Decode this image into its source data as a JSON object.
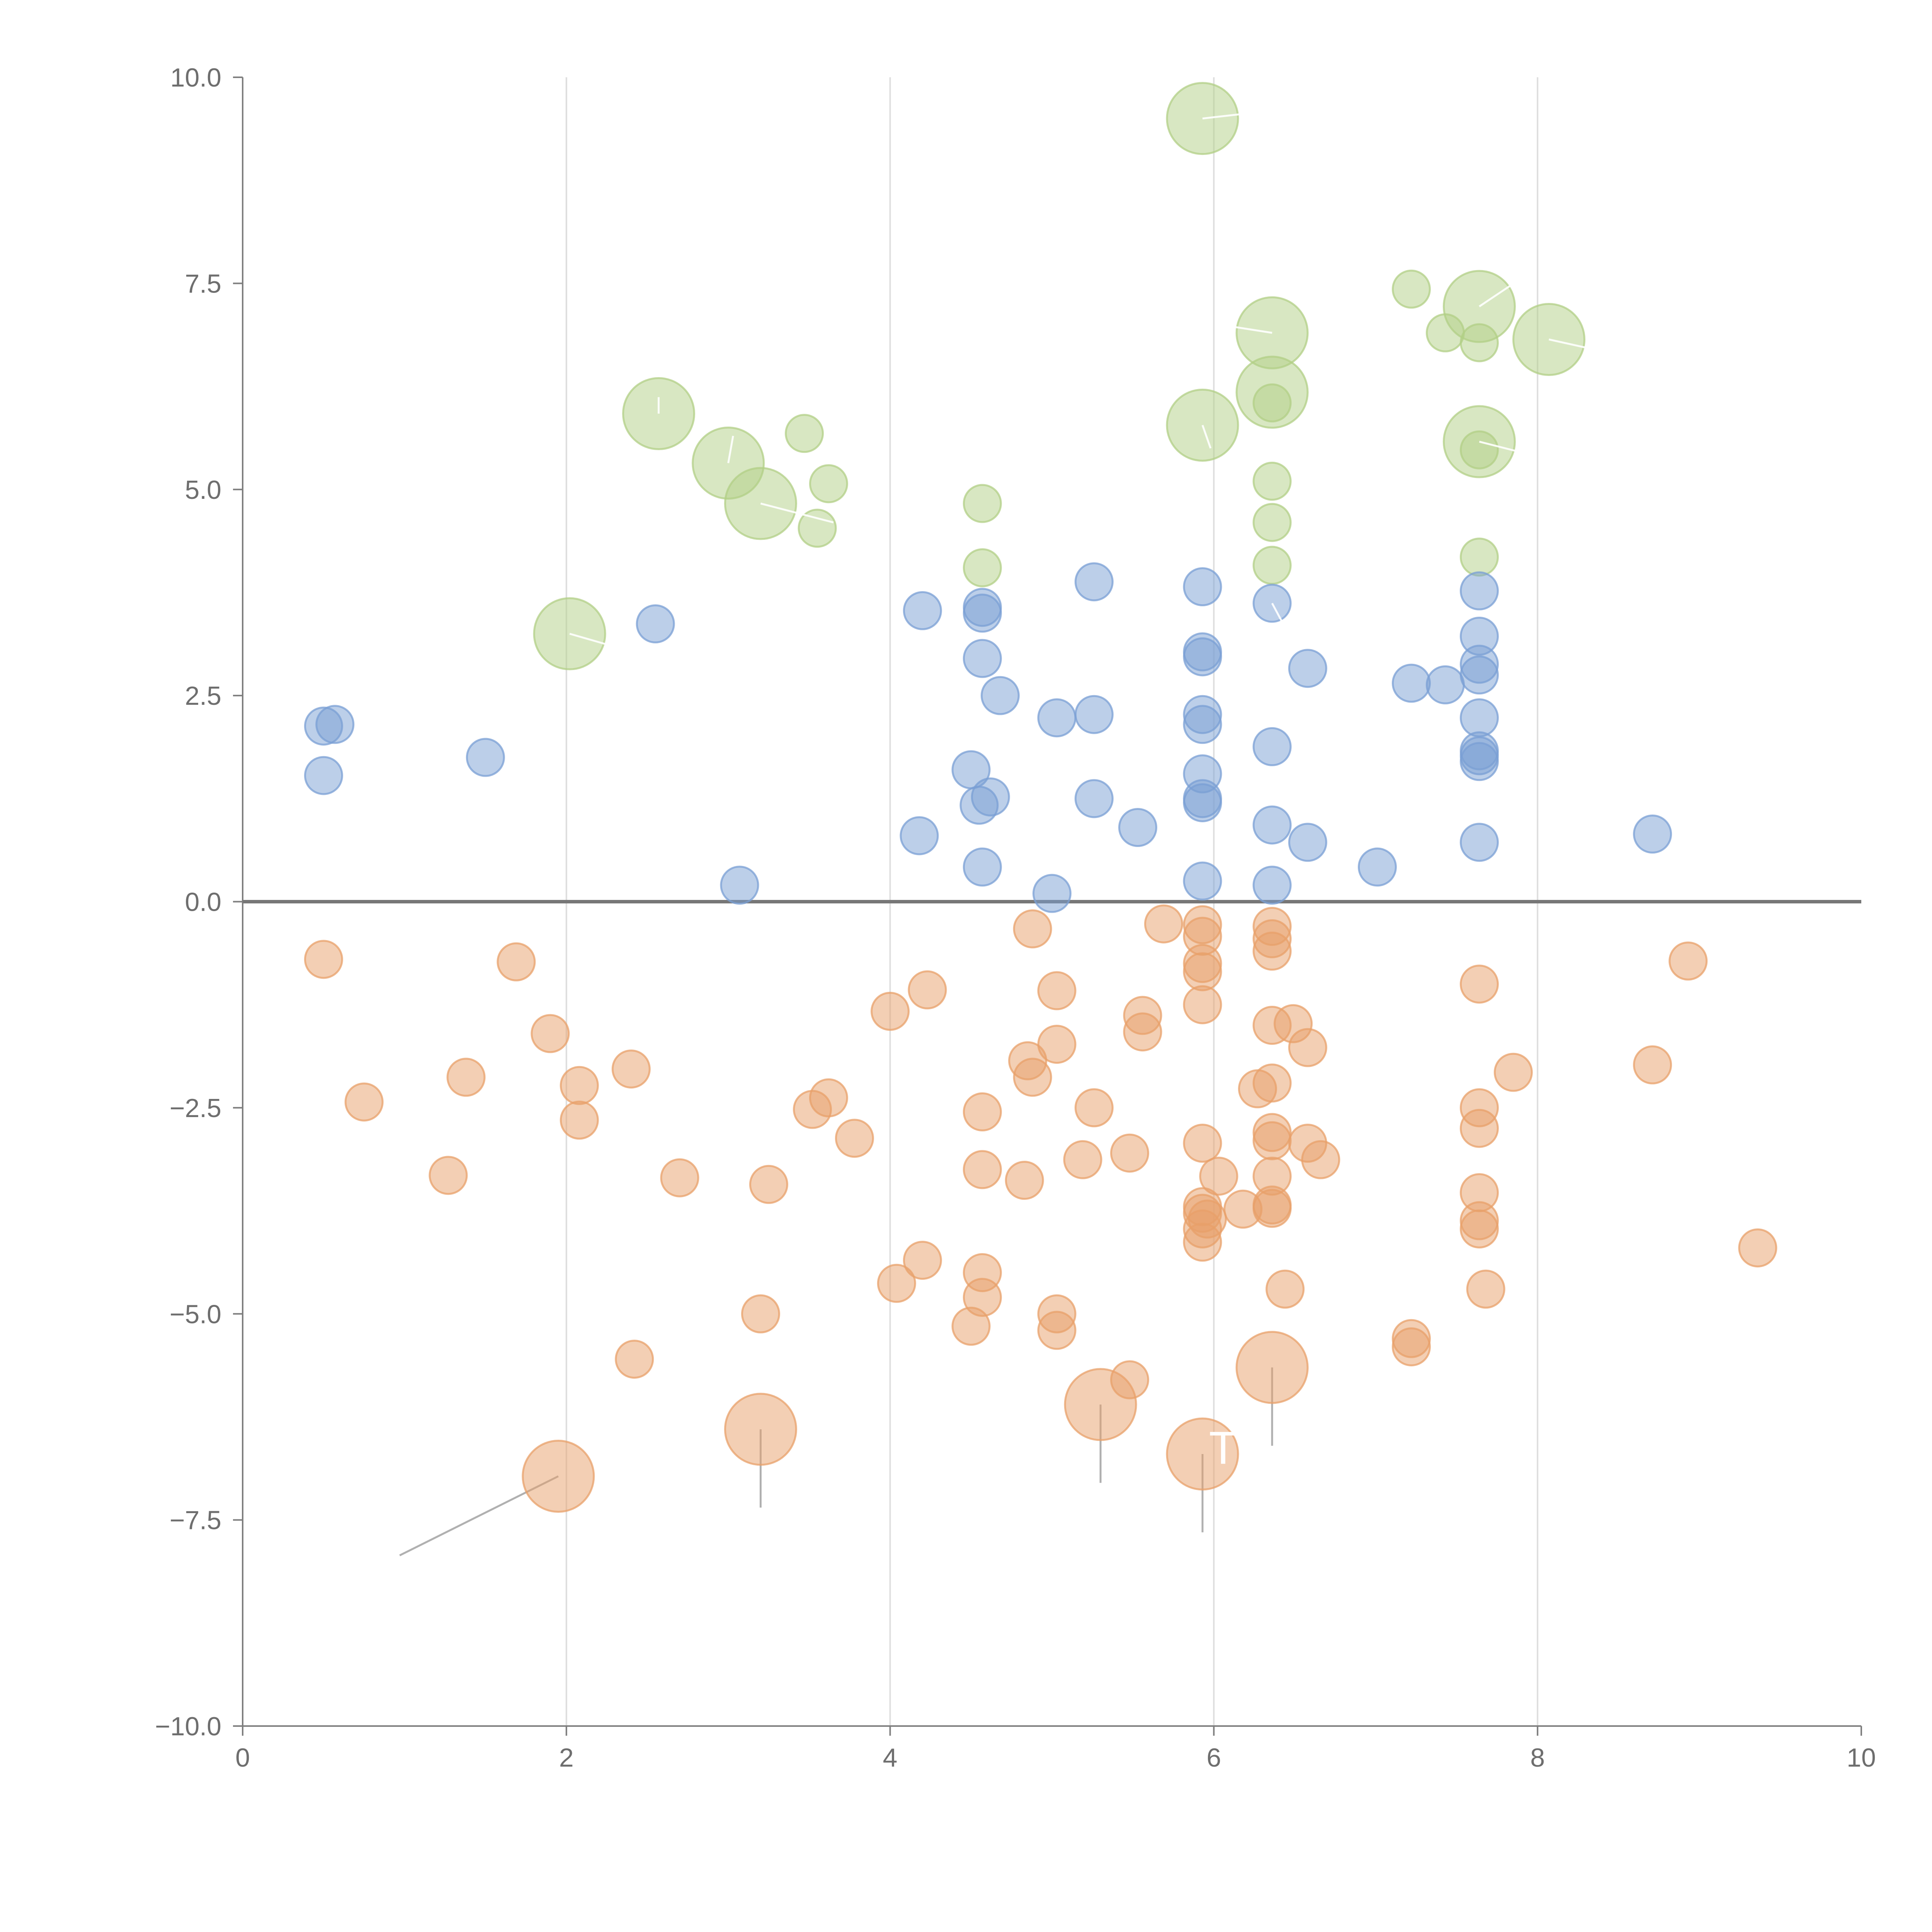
{
  "colors": {
    "positive": "#7a9fd4",
    "negative": "#e8a06a",
    "high": "#b1cf85",
    "axis": "#7f7f7f",
    "grid": "#dedede",
    "zero_line": "#777777",
    "connector": "#b0b0b0",
    "annotation": "#ffffff"
  },
  "chart_data": {
    "type": "scatter",
    "title": "",
    "xlabel": "",
    "ylabel": "",
    "xlim": [
      0,
      10
    ],
    "ylim": [
      -10,
      10
    ],
    "x_ticks": [
      0,
      2,
      4,
      6,
      8,
      10
    ],
    "y_ticks": [
      10,
      7.5,
      5,
      2.5,
      0,
      -2.5,
      -5,
      -7.5,
      -10
    ],
    "x_tick_labels": [
      "0",
      "2",
      "4",
      "6",
      "8",
      "10"
    ],
    "y_tick_labels": [
      "10.0",
      "7.5",
      "5.0",
      "2.5",
      "0.0",
      "−2.5",
      "−5.0",
      "−7.5",
      "−10.0"
    ],
    "grid": "vertical",
    "zero_line": true,
    "bubble_sizes": {
      "small": 1,
      "large": 3
    },
    "series": [
      {
        "name": "high",
        "color_key": "high",
        "points": [
          [
            5.93,
            9.5,
            3
          ],
          [
            7.22,
            7.43,
            1
          ],
          [
            7.64,
            7.22,
            3
          ],
          [
            7.43,
            6.9,
            1
          ],
          [
            6.36,
            6.9,
            3
          ],
          [
            8.07,
            6.82,
            3
          ],
          [
            7.64,
            6.78,
            1
          ],
          [
            2.57,
            5.92,
            3
          ],
          [
            6.36,
            6.18,
            3
          ],
          [
            6.36,
            6.05,
            1
          ],
          [
            5.93,
            5.78,
            3
          ],
          [
            3.47,
            5.68,
            1
          ],
          [
            7.64,
            5.58,
            3
          ],
          [
            7.64,
            5.48,
            1
          ],
          [
            3.0,
            5.32,
            3
          ],
          [
            3.62,
            5.07,
            1
          ],
          [
            6.36,
            5.1,
            1
          ],
          [
            3.2,
            4.83,
            3
          ],
          [
            4.57,
            4.83,
            1
          ],
          [
            3.55,
            4.53,
            1
          ],
          [
            6.36,
            4.6,
            1
          ],
          [
            7.64,
            4.18,
            1
          ],
          [
            6.36,
            4.08,
            1
          ],
          [
            4.57,
            4.05,
            1
          ],
          [
            2.02,
            3.25,
            3
          ]
        ]
      },
      {
        "name": "positive",
        "color_key": "positive",
        "points": [
          [
            5.26,
            3.88,
            1
          ],
          [
            5.93,
            3.82,
            1
          ],
          [
            7.64,
            3.77,
            1
          ],
          [
            6.36,
            3.62,
            1
          ],
          [
            4.2,
            3.53,
            1
          ],
          [
            4.57,
            3.57,
            1
          ],
          [
            4.57,
            3.5,
            1
          ],
          [
            2.55,
            3.37,
            1
          ],
          [
            7.64,
            3.22,
            1
          ],
          [
            5.93,
            3.03,
            1
          ],
          [
            5.93,
            2.97,
            1
          ],
          [
            4.57,
            2.95,
            1
          ],
          [
            7.64,
            2.88,
            1
          ],
          [
            6.58,
            2.83,
            1
          ],
          [
            7.64,
            2.75,
            1
          ],
          [
            7.22,
            2.65,
            1
          ],
          [
            7.43,
            2.63,
            1
          ],
          [
            4.68,
            2.5,
            1
          ],
          [
            5.93,
            2.27,
            1
          ],
          [
            5.26,
            2.27,
            1
          ],
          [
            5.03,
            2.23,
            1
          ],
          [
            7.64,
            2.23,
            1
          ],
          [
            0.5,
            2.13,
            1
          ],
          [
            0.57,
            2.15,
            1
          ],
          [
            5.93,
            2.15,
            1
          ],
          [
            6.36,
            1.88,
            1
          ],
          [
            7.64,
            1.83,
            1
          ],
          [
            7.64,
            1.77,
            1
          ],
          [
            1.5,
            1.75,
            1
          ],
          [
            7.64,
            1.7,
            1
          ],
          [
            4.5,
            1.6,
            1
          ],
          [
            5.93,
            1.55,
            1
          ],
          [
            0.5,
            1.53,
            1
          ],
          [
            4.62,
            1.27,
            1
          ],
          [
            5.26,
            1.25,
            1
          ],
          [
            5.93,
            1.25,
            1
          ],
          [
            5.93,
            1.2,
            1
          ],
          [
            4.55,
            1.17,
            1
          ],
          [
            6.36,
            0.93,
            1
          ],
          [
            5.53,
            0.9,
            1
          ],
          [
            4.18,
            0.8,
            1
          ],
          [
            8.71,
            0.82,
            1
          ],
          [
            6.58,
            0.72,
            1
          ],
          [
            7.64,
            0.72,
            1
          ],
          [
            4.57,
            0.42,
            1
          ],
          [
            7.01,
            0.42,
            1
          ],
          [
            5.93,
            0.25,
            1
          ],
          [
            6.36,
            0.2,
            1
          ],
          [
            3.07,
            0.2,
            1
          ],
          [
            5.0,
            0.1,
            1
          ]
        ]
      },
      {
        "name": "negative",
        "color_key": "negative",
        "points": [
          [
            5.93,
            -0.28,
            1
          ],
          [
            6.36,
            -0.3,
            1
          ],
          [
            5.69,
            -0.27,
            1
          ],
          [
            4.88,
            -0.33,
            1
          ],
          [
            5.93,
            -0.42,
            1
          ],
          [
            6.36,
            -0.45,
            1
          ],
          [
            6.36,
            -0.6,
            1
          ],
          [
            0.5,
            -0.7,
            1
          ],
          [
            1.69,
            -0.73,
            1
          ],
          [
            5.93,
            -0.75,
            1
          ],
          [
            8.93,
            -0.72,
            1
          ],
          [
            5.93,
            -0.85,
            1
          ],
          [
            7.64,
            -1.0,
            1
          ],
          [
            4.23,
            -1.07,
            1
          ],
          [
            5.03,
            -1.08,
            1
          ],
          [
            5.93,
            -1.25,
            1
          ],
          [
            4.0,
            -1.33,
            1
          ],
          [
            5.56,
            -1.38,
            1
          ],
          [
            6.49,
            -1.48,
            1
          ],
          [
            6.36,
            -1.5,
            1
          ],
          [
            5.56,
            -1.58,
            1
          ],
          [
            1.9,
            -1.6,
            1
          ],
          [
            5.03,
            -1.73,
            1
          ],
          [
            6.58,
            -1.77,
            1
          ],
          [
            4.85,
            -1.93,
            1
          ],
          [
            8.71,
            -1.98,
            1
          ],
          [
            2.4,
            -2.03,
            1
          ],
          [
            7.85,
            -2.07,
            1
          ],
          [
            4.88,
            -2.13,
            1
          ],
          [
            1.38,
            -2.13,
            1
          ],
          [
            6.36,
            -2.2,
            1
          ],
          [
            2.08,
            -2.23,
            1
          ],
          [
            6.27,
            -2.27,
            1
          ],
          [
            0.75,
            -2.43,
            1
          ],
          [
            3.62,
            -2.38,
            1
          ],
          [
            5.26,
            -2.5,
            1
          ],
          [
            7.64,
            -2.5,
            1
          ],
          [
            3.52,
            -2.52,
            1
          ],
          [
            4.57,
            -2.55,
            1
          ],
          [
            2.08,
            -2.65,
            1
          ],
          [
            7.64,
            -2.75,
            1
          ],
          [
            3.78,
            -2.87,
            1
          ],
          [
            6.36,
            -2.8,
            1
          ],
          [
            6.36,
            -2.9,
            1
          ],
          [
            5.93,
            -2.93,
            1
          ],
          [
            6.58,
            -2.93,
            1
          ],
          [
            5.48,
            -3.05,
            1
          ],
          [
            6.66,
            -3.13,
            1
          ],
          [
            5.19,
            -3.13,
            1
          ],
          [
            4.57,
            -3.25,
            1
          ],
          [
            1.27,
            -3.32,
            1
          ],
          [
            6.36,
            -3.33,
            1
          ],
          [
            6.03,
            -3.33,
            1
          ],
          [
            2.7,
            -3.35,
            1
          ],
          [
            4.83,
            -3.38,
            1
          ],
          [
            3.25,
            -3.43,
            1
          ],
          [
            7.64,
            -3.53,
            1
          ],
          [
            6.36,
            -3.68,
            1
          ],
          [
            5.93,
            -3.7,
            1
          ],
          [
            6.36,
            -3.72,
            1
          ],
          [
            6.18,
            -3.73,
            1
          ],
          [
            5.93,
            -3.78,
            1
          ],
          [
            5.96,
            -3.85,
            1
          ],
          [
            7.64,
            -3.87,
            1
          ],
          [
            5.93,
            -3.97,
            1
          ],
          [
            7.64,
            -3.97,
            1
          ],
          [
            5.93,
            -4.13,
            1
          ],
          [
            9.36,
            -4.2,
            1
          ],
          [
            4.2,
            -4.35,
            1
          ],
          [
            4.57,
            -4.5,
            1
          ],
          [
            4.04,
            -4.63,
            1
          ],
          [
            6.44,
            -4.7,
            1
          ],
          [
            7.68,
            -4.7,
            1
          ],
          [
            4.57,
            -4.8,
            1
          ],
          [
            3.2,
            -5.0,
            1
          ],
          [
            5.03,
            -5.0,
            1
          ],
          [
            4.5,
            -5.15,
            1
          ],
          [
            5.03,
            -5.2,
            1
          ],
          [
            7.22,
            -5.3,
            1
          ],
          [
            7.22,
            -5.4,
            1
          ],
          [
            2.42,
            -5.55,
            1
          ],
          [
            5.48,
            -5.8,
            1
          ],
          [
            6.36,
            -5.65,
            3
          ],
          [
            5.3,
            -6.1,
            3
          ],
          [
            3.2,
            -6.4,
            3
          ],
          [
            5.93,
            -6.7,
            3
          ],
          [
            1.95,
            -6.97,
            3
          ]
        ]
      }
    ],
    "annotations": [
      {
        "text": "TX",
        "x": 5.97,
        "y": -6.82
      }
    ],
    "connectors": [
      [
        1.95,
        -6.97,
        0.97,
        -7.93
      ],
      [
        3.2,
        -6.4,
        3.2,
        -7.35
      ],
      [
        5.3,
        -6.1,
        5.3,
        -7.05
      ],
      [
        5.93,
        -6.7,
        5.93,
        -7.65
      ],
      [
        6.36,
        -5.65,
        6.36,
        -6.6
      ]
    ],
    "highlight_ticks": [
      [
        5.93,
        9.5,
        6.2,
        9.56
      ],
      [
        7.64,
        7.22,
        7.83,
        7.47
      ],
      [
        6.36,
        6.9,
        6.1,
        6.98
      ],
      [
        8.07,
        6.82,
        8.3,
        6.72
      ],
      [
        2.57,
        5.92,
        2.57,
        6.12
      ],
      [
        5.93,
        5.78,
        5.98,
        5.5
      ],
      [
        7.64,
        5.58,
        7.9,
        5.45
      ],
      [
        3.0,
        5.32,
        3.03,
        5.65
      ],
      [
        3.2,
        4.83,
        3.65,
        4.6
      ],
      [
        2.02,
        3.25,
        2.25,
        3.12
      ],
      [
        6.36,
        3.62,
        6.42,
        3.4
      ]
    ]
  }
}
